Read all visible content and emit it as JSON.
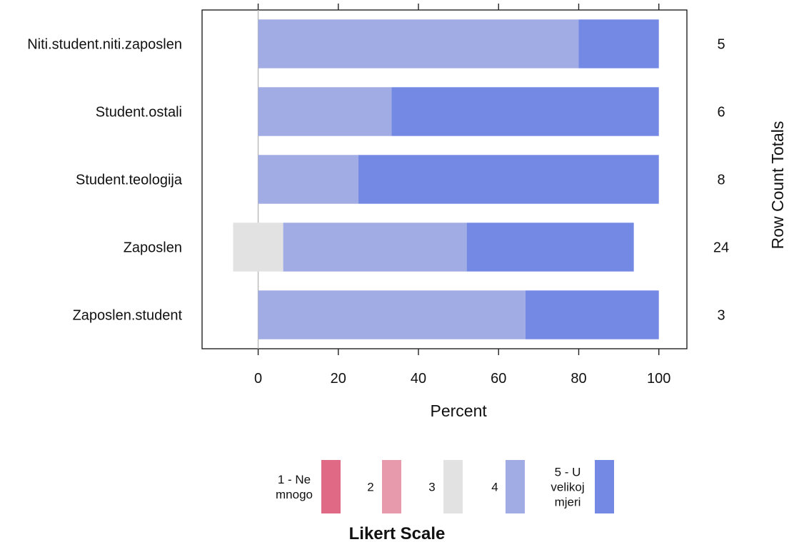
{
  "chart_data": {
    "type": "bar",
    "orientation": "horizontal",
    "stacked": true,
    "diverging": true,
    "categories": [
      "Niti.student.niti.zaposlen",
      "Student.ostali",
      "Student.teologija",
      "Zaposlen",
      "Zaposlen.student"
    ],
    "row_totals": [
      "5",
      "6",
      "8",
      "24",
      "3"
    ],
    "series": [
      {
        "name": "1 - Ne mnogo",
        "color": "#e06a86",
        "values": [
          0,
          0,
          0,
          0,
          0
        ]
      },
      {
        "name": "2",
        "color": "#e79aac",
        "values": [
          0,
          0,
          0,
          0,
          0
        ]
      },
      {
        "name": "3",
        "color": "#e2e2e2",
        "values": [
          0,
          0,
          0,
          12.5,
          0
        ]
      },
      {
        "name": "4",
        "color": "#a1abe4",
        "values": [
          80,
          33.3,
          25,
          45.8,
          66.7
        ]
      },
      {
        "name": "5 - U velikoj mjeri",
        "color": "#7389e4",
        "values": [
          20,
          66.7,
          75,
          41.7,
          33.3
        ]
      }
    ],
    "xlabel": "Percent",
    "right_axis_label": "Row Count Totals",
    "xlim": [
      -14,
      107
    ],
    "xticks": [
      "0",
      "20",
      "40",
      "60",
      "80",
      "100"
    ],
    "grid": false,
    "legend": {
      "title": "Likert Scale",
      "position": "bottom",
      "entries": [
        {
          "label_lines": [
            "1 - Ne",
            "mnogo"
          ],
          "color": "#e06a86"
        },
        {
          "label_lines": [
            "2"
          ],
          "color": "#e79aac"
        },
        {
          "label_lines": [
            "3"
          ],
          "color": "#e2e2e2"
        },
        {
          "label_lines": [
            "4"
          ],
          "color": "#a1abe4"
        },
        {
          "label_lines": [
            "5 - U",
            "velikoj",
            "mjeri"
          ],
          "color": "#7389e4"
        }
      ]
    }
  }
}
